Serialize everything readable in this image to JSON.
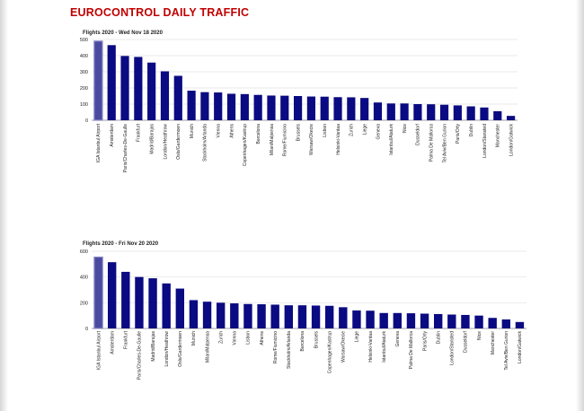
{
  "page": {
    "title": "EUROCONTROL DAILY TRAFFIC"
  },
  "colors": {
    "title": "#c00000",
    "bar": "#0a0a82",
    "highlight_fill": "#4a4aa0",
    "highlight_stroke": "#8c8cc8",
    "grid": "#e2e2e2",
    "text": "#222222"
  },
  "chart_data": [
    {
      "type": "bar",
      "title": "Flights 2020 - Wed Nov 18 2020",
      "xlabel": "",
      "ylabel": "",
      "ylim": [
        0,
        500
      ],
      "yticks": [
        0,
        100,
        200,
        300,
        400,
        500
      ],
      "grid": true,
      "legend": "none",
      "highlight_index": 0,
      "categories": [
        "IGA Istanbul Airport",
        "Amsterdam",
        "Paris/Charles-De-Gaulle",
        "Frankfurt",
        "Madrid/Barajas",
        "London/Heathrow",
        "Oslo/Gardermoen",
        "Munich",
        "Stockholm/Arlanda",
        "Vienna",
        "Athens",
        "Copenhagen/Kastrup",
        "Barcelona",
        "Milan/Malpensa",
        "Rome/Fiumicino",
        "Brussels",
        "Warsaw/Okecie",
        "Lisbon",
        "Helsinki-Vantaa",
        "Zurich",
        "Liege",
        "Geneva",
        "Istanbul/Ataturk",
        "Nice",
        "Dusseldorf",
        "Palma De Mallorca",
        "Tel Aviv/Ben Gurion",
        "Paris/Orly",
        "Dublin",
        "London/Stansted",
        "Manchester",
        "London/Gatwick"
      ],
      "values": [
        490,
        465,
        398,
        392,
        357,
        303,
        275,
        183,
        174,
        172,
        164,
        162,
        157,
        153,
        152,
        150,
        147,
        146,
        143,
        142,
        138,
        110,
        104,
        104,
        100,
        99,
        96,
        92,
        86,
        79,
        56,
        27
      ]
    },
    {
      "type": "bar",
      "title": "Flights 2020 - Fri Nov 20 2020",
      "xlabel": "",
      "ylabel": "",
      "ylim": [
        0,
        600
      ],
      "yticks": [
        0,
        200,
        400,
        600
      ],
      "grid": true,
      "legend": "none",
      "highlight_index": 0,
      "categories": [
        "IGA Istanbul Airport",
        "Amsterdam",
        "Frankfurt",
        "Paris/Charles-De-Gaulle",
        "Madrid/Barajas",
        "London/Heathrow",
        "Oslo/Gardermoen",
        "Munich",
        "Milan/Malpensa",
        "Zurich",
        "Vienna",
        "Lisbon",
        "Athens",
        "Rome/Fiumicino",
        "Stockholm/Arlanda",
        "Barcelona",
        "Brussels",
        "Copenhagen/Kastrup",
        "Warsaw/Okecie",
        "Liege",
        "Helsinki-Vantaa",
        "Istanbul/Ataturk",
        "Geneva",
        "Palma De Mallorca",
        "Paris/Orly",
        "Dublin",
        "London/Stansted",
        "Dusseldorf",
        "Nice",
        "Manchester",
        "Tel Aviv/Ben Gurion",
        "London/Gatwick"
      ],
      "values": [
        555,
        515,
        440,
        400,
        390,
        350,
        310,
        220,
        208,
        200,
        195,
        190,
        188,
        185,
        180,
        180,
        178,
        176,
        165,
        140,
        138,
        120,
        120,
        118,
        115,
        112,
        108,
        105,
        100,
        82,
        70,
        50
      ]
    }
  ]
}
